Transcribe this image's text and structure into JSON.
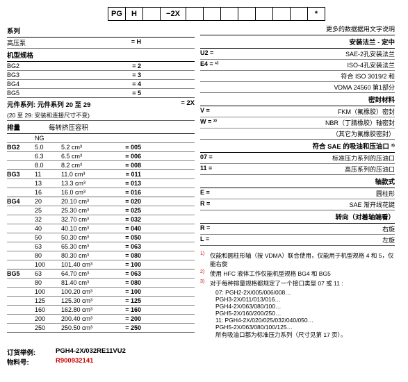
{
  "top_codes": [
    "PG",
    "H",
    "",
    "−2X",
    "",
    "",
    "",
    "",
    "",
    "",
    "",
    "*"
  ],
  "more_data": "更多的数据据用文字说明",
  "left": {
    "series": {
      "title": "系列",
      "row": {
        "label": "高压泵",
        "code": "= H"
      }
    },
    "machine": {
      "title": "机型规格",
      "rows": [
        {
          "label": "BG2",
          "code": "= 2"
        },
        {
          "label": "BG3",
          "code": "= 3"
        },
        {
          "label": "BG4",
          "code": "= 4"
        },
        {
          "label": "BG5",
          "code": "= 5"
        }
      ]
    },
    "component": {
      "title": "元件系列: 元件系列 20 至 29",
      "sub": "(20 至 29: 安装和连接尺寸不变)",
      "code": "= 2X"
    },
    "disp": {
      "title": "排量",
      "subtitle": "每转挤压容积",
      "ng": "NG",
      "groups": [
        {
          "bg": "BG2",
          "rows": [
            {
              "ng": "5.0",
              "vol": "5.2 cm³",
              "code": "= 005"
            },
            {
              "ng": "6.3",
              "vol": "6.5 cm³",
              "code": "= 006"
            },
            {
              "ng": "8.0",
              "vol": "8.2 cm³",
              "code": "= 008"
            }
          ]
        },
        {
          "bg": "BG3",
          "rows": [
            {
              "ng": "11",
              "vol": "11.0 cm³",
              "code": "= 011"
            },
            {
              "ng": "13",
              "vol": "13.3 cm³",
              "code": "= 013"
            },
            {
              "ng": "16",
              "vol": "16.0 cm³",
              "code": "= 016"
            }
          ]
        },
        {
          "bg": "BG4",
          "rows": [
            {
              "ng": "20",
              "vol": "20.10 cm³",
              "code": "= 020"
            },
            {
              "ng": "25",
              "vol": "25.30 cm³",
              "code": "= 025"
            },
            {
              "ng": "32",
              "vol": "32.70 cm³",
              "code": "= 032"
            },
            {
              "ng": "40",
              "vol": "40.10 cm³",
              "code": "= 040"
            },
            {
              "ng": "50",
              "vol": "50.30 cm³",
              "code": "= 050"
            },
            {
              "ng": "63",
              "vol": "65.30 cm³",
              "code": "= 063"
            },
            {
              "ng": "80",
              "vol": "80.30 cm³",
              "code": "= 080"
            },
            {
              "ng": "100",
              "vol": "101.40 cm³",
              "code": "= 100"
            }
          ]
        },
        {
          "bg": "BG5",
          "rows": [
            {
              "ng": "63",
              "vol": "64.70 cm³",
              "code": "= 063"
            },
            {
              "ng": "80",
              "vol": "81.40 cm³",
              "code": "= 080"
            },
            {
              "ng": "100",
              "vol": "100.20 cm³",
              "code": "= 100"
            },
            {
              "ng": "125",
              "vol": "125.30 cm³",
              "code": "= 125"
            },
            {
              "ng": "160",
              "vol": "162.80 cm³",
              "code": "= 160"
            },
            {
              "ng": "200",
              "vol": "200.40 cm³",
              "code": "= 200"
            },
            {
              "ng": "250",
              "vol": "250.50 cm³",
              "code": "= 250"
            }
          ]
        }
      ]
    }
  },
  "right": {
    "flange": {
      "title": "安装法兰 - 定中",
      "rows": [
        {
          "code": "U2 =",
          "desc": "SAE-2孔安装法兰"
        },
        {
          "code": "E4 = ¹⁾",
          "desc": "ISO-4孔安装法兰"
        },
        {
          "code": "",
          "desc": "符合 ISO 3019/2 和"
        },
        {
          "code": "",
          "desc": "VDMA 24560 第1部分"
        }
      ]
    },
    "seal": {
      "title": "密封材料",
      "rows": [
        {
          "code": "V =",
          "desc": "FKM（氟橡胶）密封"
        },
        {
          "code": "W = ²⁾",
          "desc": "NBR（丁腈橡胶）轴密封"
        },
        {
          "code": "",
          "desc": "（其它为氟橡胶密封）"
        }
      ]
    },
    "sae": {
      "title": "符合 SAE 的吸油和压油口 ³⁾",
      "rows": [
        {
          "code": "07 =",
          "desc": "标准压力系列的压油口"
        },
        {
          "code": "11 =",
          "desc": "高压系列的压油口"
        }
      ]
    },
    "shaft": {
      "title": "轴款式",
      "rows": [
        {
          "code": "E =",
          "desc": "圆柱形"
        },
        {
          "code": "R =",
          "desc": "SAE 渐开线花键"
        }
      ]
    },
    "rotation": {
      "title": "转向（对着轴端看）",
      "rows": [
        {
          "code": "R =",
          "desc": "右旋"
        },
        {
          "code": "L =",
          "desc": "左旋"
        }
      ]
    }
  },
  "notes": [
    {
      "n": "1)",
      "txt": "仅能和圆柱形轴（按 VDMA）联合使用，仅能用于机型规格 4 和 5，仅能右旋"
    },
    {
      "n": "2)",
      "txt": "使用 HFC 液体工作仅能机型规格 BG4 和 BG5"
    },
    {
      "n": "3)",
      "txt": "对于每种排量规格都规定了一个接口类型 07 或 11 :"
    }
  ],
  "note3_lines": [
    "07:  PGH2-2X/005/006/008…",
    "       PGH3-2X/011/013/016…",
    "       PGH4-2X/063/080/100…",
    "       PGH5-2X/160/200/250…",
    "11:  PGH4-2X/020/025/032/040/050…",
    "       PGH5-2X/063/080/100/125…",
    "所有吸油口都为标准压力系列（尺寸见第 17 页）。"
  ],
  "footer": {
    "example_label": "订货举例:",
    "example_val": "PGH4-2X/032RE11VU2",
    "material_label": "物料号:",
    "material_val": "R900932141"
  }
}
